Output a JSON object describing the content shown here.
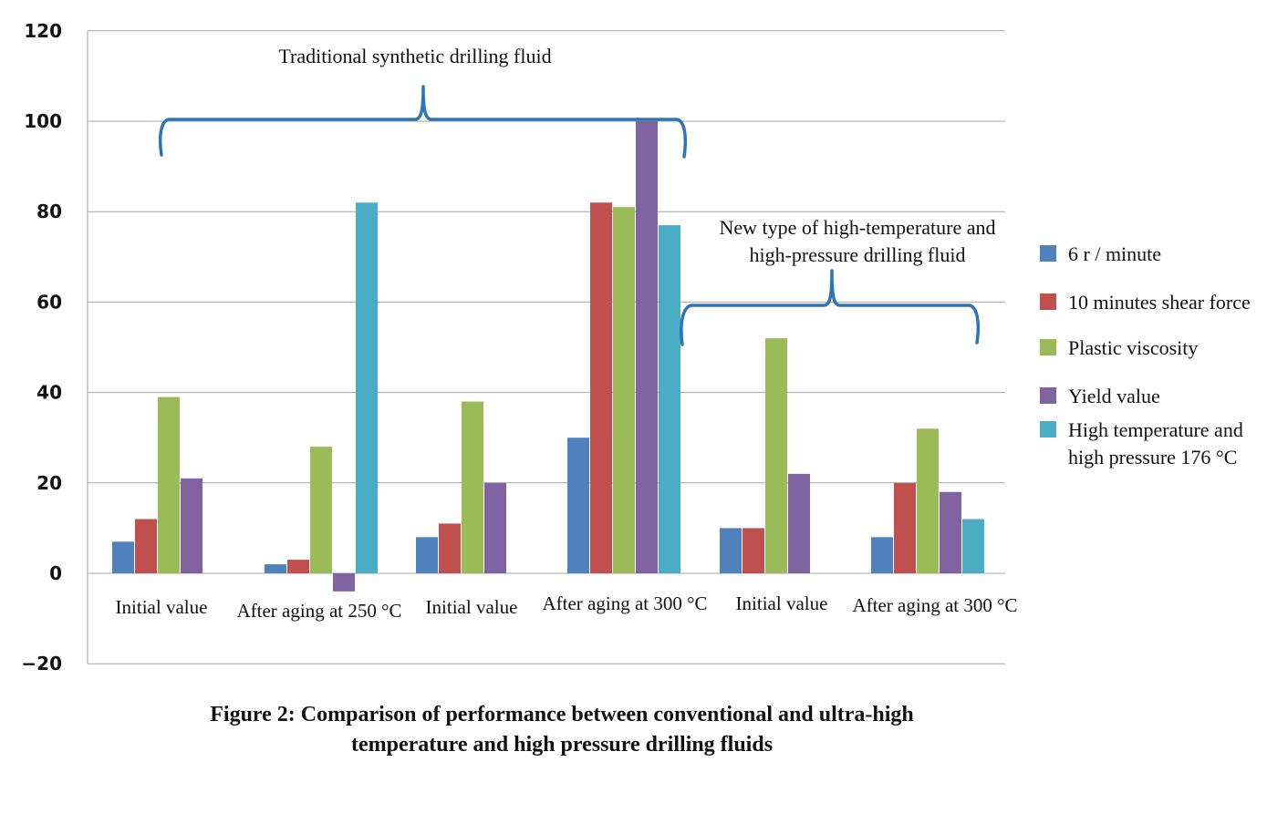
{
  "chart_data": {
    "type": "bar",
    "categories": [
      "Initial value",
      "After aging at 250 °C",
      "Initial value",
      "After aging at 300 °C",
      "Initial value",
      "After aging at 300 °C"
    ],
    "series": [
      {
        "name": "6 r / minute",
        "color": "#4f81bd",
        "values": [
          7,
          2,
          8,
          30,
          10,
          8
        ]
      },
      {
        "name": "10 minutes shear force",
        "color": "#c0504d",
        "values": [
          12,
          3,
          11,
          82,
          10,
          20
        ]
      },
      {
        "name": "Plastic viscosity",
        "color": "#9bbb59",
        "values": [
          39,
          28,
          38,
          81,
          52,
          32
        ]
      },
      {
        "name": "Yield value",
        "color": "#8064a2",
        "values": [
          21,
          -4,
          20,
          100,
          22,
          18
        ]
      },
      {
        "name": "High temperature and high pressure 176 °C",
        "color": "#4bacc6",
        "values": [
          null,
          82,
          null,
          77,
          null,
          12
        ]
      }
    ],
    "legend": [
      {
        "color": "#4f81bd",
        "lines": [
          "6 r / minute"
        ]
      },
      {
        "color": "#c0504d",
        "lines": [
          "10 minutes shear force"
        ]
      },
      {
        "color": "#9bbb59",
        "lines": [
          "Plastic viscosity"
        ]
      },
      {
        "color": "#8064a2",
        "lines": [
          "Yield value"
        ]
      },
      {
        "color": "#4bacc6",
        "lines": [
          "High temperature and",
          "high pressure 176 °C"
        ]
      }
    ],
    "ylim": [
      -20,
      120
    ],
    "yticks": [
      120,
      100,
      80,
      60,
      40,
      20,
      0,
      -20
    ],
    "grid": true,
    "legend_position": "right",
    "annotations": {
      "traditional": {
        "label": "Traditional synthetic drilling fluid",
        "spans_categories": [
          0,
          3
        ]
      },
      "new_type": {
        "lines": [
          "New type of high-temperature and",
          "high-pressure drilling fluid"
        ],
        "spans_categories": [
          4,
          5
        ]
      }
    },
    "xlabel": "",
    "ylabel": ""
  },
  "caption": {
    "line1": "Figure 2: Comparison of performance between conventional and ultra-high",
    "line2": "temperature and high pressure drilling fluids"
  }
}
